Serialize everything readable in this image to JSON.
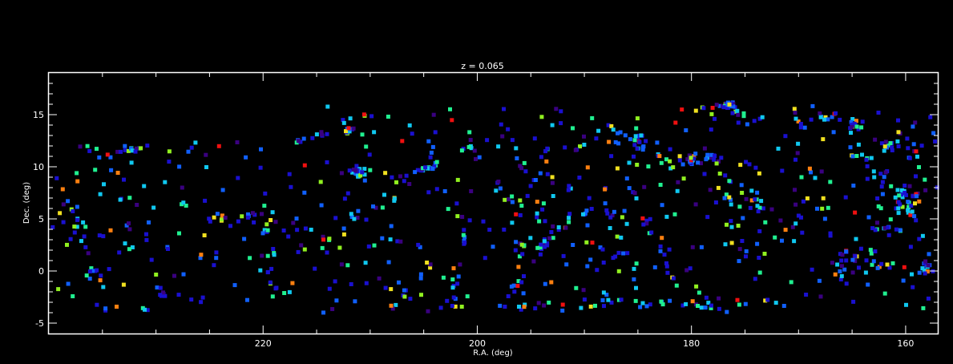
{
  "chart_data": {
    "type": "scatter",
    "title": "z = 0.065",
    "xlabel": "R.A. (deg)",
    "ylabel": "Dec. (deg)",
    "xlim": [
      240,
      157
    ],
    "ylim": [
      -6,
      19
    ],
    "x_reversed": true,
    "x_ticks": [
      220,
      200,
      180,
      160
    ],
    "y_ticks": [
      -5,
      0,
      5,
      10,
      15
    ],
    "grid": false,
    "background": "#000000",
    "frame_color": "#ffffff",
    "colormap": [
      "#3a0080",
      "#1a10d0",
      "#1060ff",
      "#10c8f0",
      "#20f090",
      "#90f020",
      "#f0e020",
      "#ff8010",
      "#f01010"
    ],
    "series": [
      {
        "filaments": [
          {
            "pts": [
              [
                236,
                10.5
              ],
              [
                233,
                11.5
              ],
              [
                230,
                12
              ]
            ],
            "n": 14,
            "s": 0.35
          },
          {
            "pts": [
              [
                238,
                7
              ],
              [
                237,
                4
              ],
              [
                236.5,
                1
              ],
              [
                235,
                -1.5
              ]
            ],
            "n": 16,
            "s": 0.5
          },
          {
            "pts": [
              [
                230,
                -1.5
              ],
              [
                229,
                -2.5
              ]
            ],
            "n": 5,
            "s": 0.4
          },
          {
            "pts": [
              [
                226,
                4.8
              ],
              [
                224,
                5
              ],
              [
                222,
                5.3
              ],
              [
                220,
                5.6
              ]
            ],
            "n": 16,
            "s": 0.4
          },
          {
            "pts": [
              [
                220,
                5.5
              ],
              [
                219,
                2
              ],
              [
                219.5,
                -1
              ],
              [
                218,
                -2.5
              ]
            ],
            "n": 14,
            "s": 0.4
          },
          {
            "pts": [
              [
                217,
                12.5
              ],
              [
                214,
                13
              ]
            ],
            "n": 10,
            "s": 0.35
          },
          {
            "pts": [
              [
                216,
                7
              ],
              [
                212,
                5.5
              ],
              [
                208,
                7
              ]
            ],
            "n": 12,
            "s": 0.8
          },
          {
            "pts": [
              [
                213,
                9
              ],
              [
                209,
                9.5
              ],
              [
                206,
                8.5
              ]
            ],
            "n": 10,
            "s": 0.6
          },
          {
            "pts": [
              [
                211,
                2
              ],
              [
                208,
                3
              ],
              [
                205,
                2
              ]
            ],
            "n": 8,
            "s": 0.6
          },
          {
            "pts": [
              [
                207,
                -2
              ],
              [
                206,
                -3
              ]
            ],
            "n": 5,
            "s": 0.4
          },
          {
            "pts": [
              [
                205,
                13
              ],
              [
                204,
                10
              ],
              [
                203,
                7
              ],
              [
                201,
                5
              ],
              [
                202,
                0
              ],
              [
                202,
                -3
              ]
            ],
            "n": 22,
            "s": 0.5
          },
          {
            "pts": [
              [
                206,
                9.5
              ],
              [
                204,
                10
              ]
            ],
            "n": 16,
            "s": 0.15
          },
          {
            "pts": [
              [
                201,
                14
              ],
              [
                200,
                11
              ],
              [
                198,
                8
              ],
              [
                196,
                5
              ],
              [
                193,
                4
              ]
            ],
            "n": 20,
            "s": 0.6
          },
          {
            "pts": [
              [
                197,
                10
              ],
              [
                194,
                9
              ],
              [
                191,
                8
              ]
            ],
            "n": 12,
            "s": 0.7
          },
          {
            "pts": [
              [
                196,
                -3.5
              ],
              [
                193,
                -3
              ],
              [
                190,
                -3.5
              ],
              [
                186,
                -3
              ],
              [
                182,
                -3
              ],
              [
                178,
                -3.5
              ],
              [
                175,
                -3
              ]
            ],
            "n": 32,
            "s": 0.4
          },
          {
            "pts": [
              [
                197,
                3
              ],
              [
                195,
                2
              ],
              [
                193,
                3
              ],
              [
                191,
                5
              ],
              [
                189,
                6
              ]
            ],
            "n": 16,
            "s": 0.6
          },
          {
            "pts": [
              [
                195,
                8
              ],
              [
                194,
                6
              ],
              [
                195,
                4
              ],
              [
                196,
                2
              ],
              [
                196,
                0
              ],
              [
                197,
                -3
              ]
            ],
            "n": 16,
            "s": 0.4
          },
          {
            "pts": [
              [
                191,
                13
              ],
              [
                189,
                10
              ],
              [
                188,
                7
              ],
              [
                187,
                4
              ],
              [
                186,
                1
              ],
              [
                185,
                -2
              ]
            ],
            "n": 18,
            "s": 0.6
          },
          {
            "pts": [
              [
                188,
                14
              ],
              [
                185,
                12.5
              ],
              [
                183,
                11
              ],
              [
                180,
                10.5
              ],
              [
                177,
                11
              ]
            ],
            "n": 26,
            "s": 0.7
          },
          {
            "pts": [
              [
                180,
                15.5
              ],
              [
                177,
                15.8
              ],
              [
                175,
                15
              ]
            ],
            "n": 16,
            "s": 0.4
          },
          {
            "pts": [
              [
                186,
                10
              ],
              [
                185,
                7
              ],
              [
                184,
                4
              ],
              [
                183,
                2
              ],
              [
                182,
                -1
              ]
            ],
            "n": 14,
            "s": 0.5
          },
          {
            "pts": [
              [
                178,
                11
              ],
              [
                177,
                9
              ],
              [
                176,
                6
              ],
              [
                175,
                3
              ],
              [
                174,
                0
              ]
            ],
            "n": 14,
            "s": 0.6
          },
          {
            "pts": [
              [
                176,
                9
              ],
              [
                174,
                7
              ],
              [
                172,
                5
              ],
              [
                170,
                3
              ]
            ],
            "n": 12,
            "s": 0.6
          },
          {
            "pts": [
              [
                172,
                14
              ],
              [
                170,
                11
              ],
              [
                168,
                8
              ],
              [
                167,
                5
              ],
              [
                166,
                2
              ],
              [
                166,
                -1
              ]
            ],
            "n": 18,
            "s": 0.6
          },
          {
            "pts": [
              [
                170,
                14
              ],
              [
                167,
                15
              ],
              [
                164,
                14
              ]
            ],
            "n": 14,
            "s": 0.5
          },
          {
            "pts": [
              [
                165,
                12
              ],
              [
                163,
                10
              ],
              [
                161,
                8
              ],
              [
                160,
                5
              ],
              [
                158,
                3
              ]
            ],
            "n": 22,
            "s": 0.8
          },
          {
            "pts": [
              [
                161,
                13
              ],
              [
                159,
                11
              ],
              [
                158,
                8
              ],
              [
                157,
                6
              ]
            ],
            "n": 16,
            "s": 0.7
          },
          {
            "pts": [
              [
                166,
                2
              ],
              [
                164,
                1
              ],
              [
                161,
                0.5
              ],
              [
                158,
                0
              ]
            ],
            "n": 18,
            "s": 0.6
          },
          {
            "pts": [
              [
                163,
                4
              ],
              [
                161,
                4
              ],
              [
                159,
                5
              ]
            ],
            "n": 10,
            "s": 0.6
          }
        ],
        "clusters": [
          {
            "c": [
              211,
              9.5
            ],
            "n": 26,
            "s": 0.5
          },
          {
            "c": [
              212,
              13.5
            ],
            "n": 10,
            "s": 0.5
          },
          {
            "c": [
              176.5,
              15.8
            ],
            "n": 16,
            "s": 0.4
          },
          {
            "c": [
              180,
              10.8
            ],
            "n": 14,
            "s": 0.5
          },
          {
            "c": [
              185,
              12.5
            ],
            "n": 12,
            "s": 0.6
          },
          {
            "c": [
              160,
              7
            ],
            "n": 24,
            "s": 1.2
          },
          {
            "c": [
              161.5,
              12
            ],
            "n": 12,
            "s": 0.8
          },
          {
            "c": [
              165,
              14
            ],
            "n": 8,
            "s": 0.5
          },
          {
            "c": [
              194,
              2.5
            ],
            "n": 8,
            "s": 0.5
          },
          {
            "c": [
              158,
              0.5
            ],
            "n": 10,
            "s": 0.6
          }
        ],
        "field_points": 520
      }
    ]
  }
}
